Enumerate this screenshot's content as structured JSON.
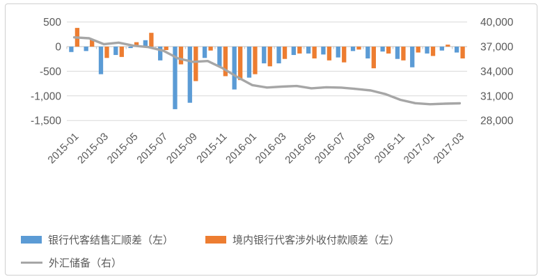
{
  "chart_data": {
    "type": "combo",
    "title": "",
    "grid": true,
    "legend_position": "bottom",
    "x_label_interval": 2,
    "categories": [
      "2015-01",
      "2015-02",
      "2015-03",
      "2015-04",
      "2015-05",
      "2015-06",
      "2015-07",
      "2015-08",
      "2015-09",
      "2015-10",
      "2015-11",
      "2015-12",
      "2016-01",
      "2016-02",
      "2016-03",
      "2016-04",
      "2016-05",
      "2016-06",
      "2016-07",
      "2016-08",
      "2016-09",
      "2016-10",
      "2016-11",
      "2016-12",
      "2017-01",
      "2017-02",
      "2017-03"
    ],
    "series": [
      {
        "name": "银行代客结售汇顺差（左）",
        "type": "bar",
        "axis": "left",
        "color": "#5B9BD5",
        "values": [
          -110,
          -90,
          -560,
          -170,
          -30,
          130,
          -280,
          -1270,
          -1140,
          -230,
          -400,
          -870,
          -630,
          -340,
          -340,
          -170,
          -140,
          -160,
          -220,
          -90,
          -240,
          -100,
          -250,
          -420,
          -140,
          -80,
          -120
        ]
      },
      {
        "name": "境内银行代客涉外收付款顺差（左）",
        "type": "bar",
        "axis": "left",
        "color": "#ED7D31",
        "values": [
          380,
          150,
          -230,
          -210,
          90,
          280,
          -70,
          -360,
          -700,
          -80,
          -600,
          -680,
          -560,
          -400,
          -250,
          -140,
          -240,
          -280,
          -320,
          -60,
          -440,
          -140,
          -280,
          -120,
          -190,
          40,
          -240
        ]
      },
      {
        "name": "外汇储备（右）",
        "type": "line",
        "axis": "right",
        "color": "#A6A6A6",
        "values": [
          38130,
          38020,
          37300,
          37480,
          37110,
          36940,
          36510,
          35570,
          35140,
          35250,
          34380,
          33300,
          32310,
          32020,
          32130,
          32200,
          31920,
          32050,
          32010,
          31850,
          31660,
          31210,
          30520,
          30110,
          29980,
          30050,
          30090
        ]
      }
    ],
    "left_axis": {
      "ticks": [
        "500",
        "0",
        "-500",
        "-1,000",
        "-1,500"
      ],
      "values": [
        500,
        0,
        -500,
        -1000,
        -1500
      ],
      "range": [
        -1500,
        500
      ]
    },
    "right_axis": {
      "ticks": [
        "40,000",
        "37,000",
        "34,000",
        "31,000",
        "28,000"
      ],
      "values": [
        40000,
        37000,
        34000,
        31000,
        28000
      ],
      "range": [
        28000,
        40000
      ]
    },
    "colors": {
      "gridline": "#D9D9D9",
      "axis_line": "#BFBFBF",
      "axis_text": "#595959"
    }
  }
}
